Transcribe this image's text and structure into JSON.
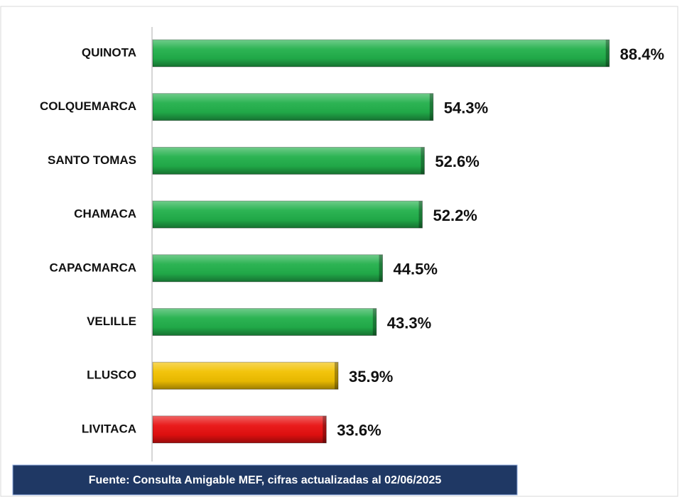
{
  "chart_data": {
    "type": "hbar",
    "categories": [
      "QUINOTA",
      "COLQUEMARCA",
      "SANTO TOMAS",
      "CHAMACA",
      "CAPACMARCA",
      "VELILLE",
      "LLUSCO",
      "LIVITACA"
    ],
    "values": [
      88.4,
      54.3,
      52.6,
      52.2,
      44.5,
      43.3,
      35.9,
      33.6
    ],
    "value_labels": [
      "88.4%",
      "54.3%",
      "52.6%",
      "52.2%",
      "44.5%",
      "43.3%",
      "35.9%",
      "33.6%"
    ],
    "colors": [
      "#22b04b",
      "#22b04b",
      "#22b04b",
      "#22b04b",
      "#22b04b",
      "#22b04b",
      "#f2c100",
      "#e81010"
    ],
    "source": "Fuente: Consulta Amigable MEF, cifras actualizadas al 02/06/2025"
  }
}
